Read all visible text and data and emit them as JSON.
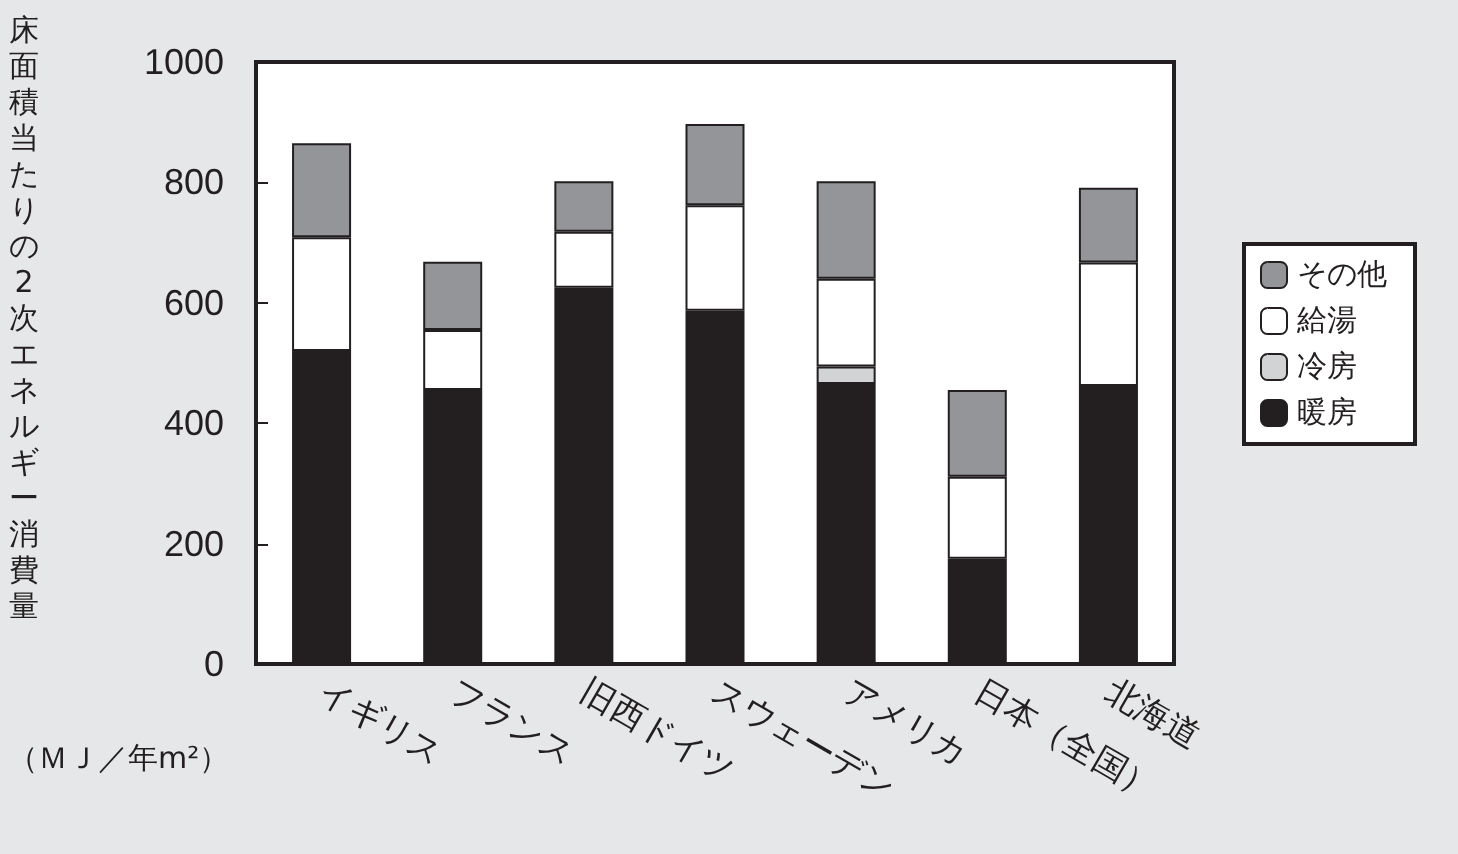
{
  "chart_data": {
    "type": "bar",
    "stacked": true,
    "ylabel": "床面積当たりの2次エネルギー消費量",
    "annotations": [
      "（ＭＪ／年m²）"
    ],
    "categories": [
      "イギリス",
      "フランス",
      "旧西ドイツ",
      "スウェーデン",
      "アメリカ",
      "日本（全国）",
      "北海道"
    ],
    "series": [
      {
        "name": "暖房",
        "color": "#231f20",
        "values": [
          520,
          455,
          625,
          587,
          465,
          175,
          462
        ]
      },
      {
        "name": "冷房",
        "color": "#d1d3d4",
        "values": [
          null,
          null,
          null,
          null,
          29,
          null,
          null
        ]
      },
      {
        "name": "給湯",
        "color": "#ffffff",
        "values": [
          189,
          100,
          93,
          175,
          146,
          136,
          205
        ]
      },
      {
        "name": "その他",
        "color": "#939598",
        "values": [
          156,
          113,
          84,
          135,
          162,
          144,
          124
        ]
      }
    ],
    "ylim": [
      0,
      1000
    ],
    "yticks": [
      0,
      200,
      400,
      600,
      800,
      1000
    ],
    "grid": false,
    "legend": "right"
  }
}
